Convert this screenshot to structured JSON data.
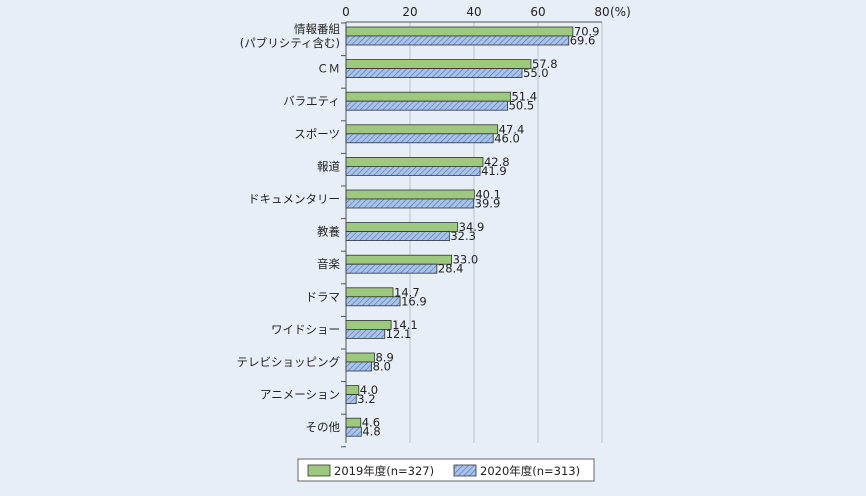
{
  "chart_data": {
    "type": "bar",
    "orientation": "horizontal",
    "categories": [
      [
        "情報番組",
        "(パブリシティ含む)"
      ],
      [
        "ＣＭ"
      ],
      [
        "バラエティ"
      ],
      [
        "スポーツ"
      ],
      [
        "報道"
      ],
      [
        "ドキュメンタリー"
      ],
      [
        "教養"
      ],
      [
        "音楽"
      ],
      [
        "ドラマ"
      ],
      [
        "ワイドショー"
      ],
      [
        "テレビショッピング"
      ],
      [
        "アニメーション"
      ],
      [
        "その他"
      ]
    ],
    "series": [
      {
        "name": "2019年度(n=327)",
        "color": "#9dc97f",
        "pattern": "solid",
        "values": [
          70.9,
          57.8,
          51.4,
          47.4,
          42.8,
          40.1,
          34.9,
          33.0,
          14.7,
          14.1,
          8.9,
          4.0,
          4.6
        ],
        "labels": [
          "70.9",
          "57.8",
          "51.4",
          "47.4",
          "42.8",
          "40.1",
          "34.9",
          "33.0",
          "14.7",
          "14.1",
          "8.9",
          "4.0",
          "4.6"
        ]
      },
      {
        "name": "2020年度(n=313)",
        "color": "#a9c4ea",
        "pattern": "diagonal-hatch",
        "values": [
          69.6,
          55.0,
          50.5,
          46.0,
          41.9,
          39.9,
          32.3,
          28.4,
          16.9,
          12.1,
          8.0,
          3.2,
          4.8
        ],
        "labels": [
          "69.6",
          "55.0",
          "50.5",
          "46.0",
          "41.9",
          "39.9",
          "32.3",
          "28.4",
          "16.9",
          "12.1",
          "8.0",
          "3.2",
          "4.8"
        ]
      }
    ],
    "x_axis": {
      "range": [
        0,
        80
      ],
      "ticks": [
        "0",
        "20",
        "40",
        "60",
        "80"
      ],
      "unit_label": "(%)",
      "position": "top",
      "gridlines": true
    },
    "legend": {
      "position": "bottom-center"
    },
    "title": "",
    "xlabel": "",
    "ylabel": ""
  }
}
